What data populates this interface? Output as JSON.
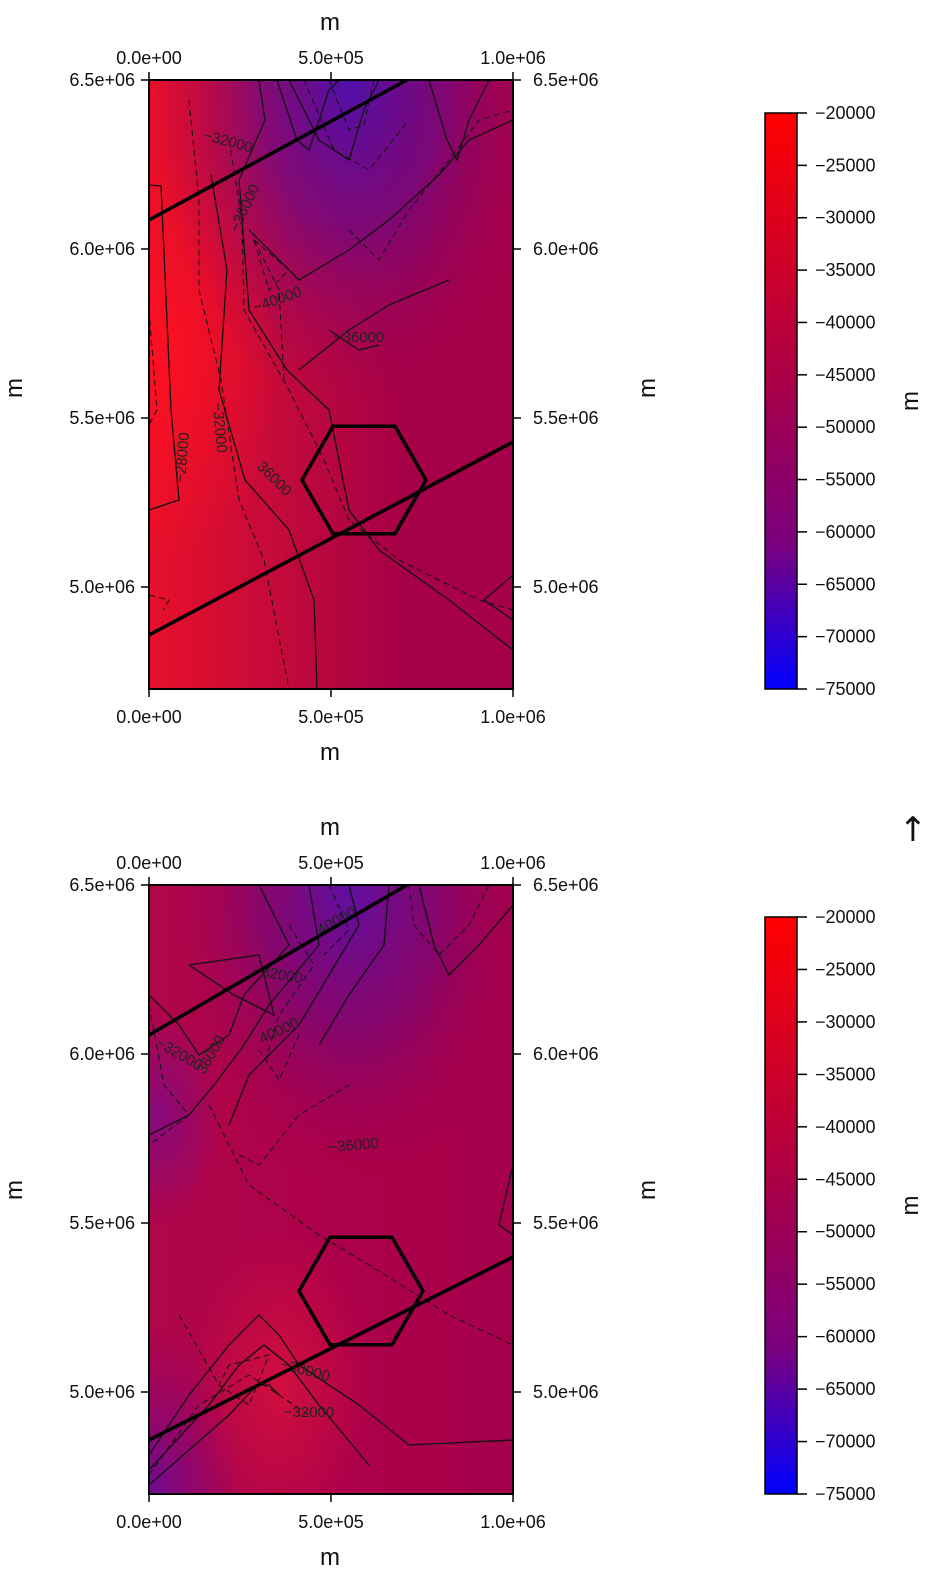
{
  "colors": {
    "scale_high": "#ff0000",
    "scale_mid": "#a4004c",
    "scale_low": "#0000ff",
    "contour_line": "#111111",
    "overlay_line": "#000000"
  },
  "side_glyph": {
    "icon": "arrow-hat-icon",
    "text": "↑"
  },
  "chart_data": [
    {
      "type": "heatmap",
      "title": "",
      "top_axis": {
        "title": "m",
        "ticks": [
          "0.0e+00",
          "5.0e+05",
          "1.0e+06"
        ]
      },
      "bottom_axis": {
        "title": "m",
        "ticks": [
          "0.0e+00",
          "5.0e+05",
          "1.0e+06"
        ]
      },
      "left_axis": {
        "title": "m",
        "ticks": [
          "6.5e+06",
          "6.0e+06",
          "5.5e+06",
          "5.0e+06"
        ]
      },
      "right_axis": {
        "title": "m",
        "ticks": [
          "6.5e+06",
          "6.0e+06",
          "5.5e+06",
          "5.0e+06"
        ]
      },
      "xlim": [
        0,
        1000000
      ],
      "ylim": [
        4700000,
        6500000
      ],
      "colorbar": {
        "title": "m",
        "ticks": [
          "−20000",
          "−25000",
          "−30000",
          "−35000",
          "−40000",
          "−45000",
          "−50000",
          "−55000",
          "−60000",
          "−65000",
          "−70000",
          "−75000"
        ],
        "range": [
          -75000,
          -20000
        ]
      },
      "contour_labels": [
        "−32000",
        "−36000",
        "−40000",
        "−36000",
        "−32000",
        "−28000",
        "36000"
      ],
      "contour_levels": [
        -28000,
        -32000,
        -36000,
        -40000
      ],
      "field_description_values": {
        "west_edge": -24000,
        "center": -37000,
        "north_trough": -52000,
        "east_edge": -38000
      }
    },
    {
      "type": "heatmap",
      "title": "",
      "top_axis": {
        "title": "m",
        "ticks": [
          "0.0e+00",
          "5.0e+05",
          "1.0e+06"
        ]
      },
      "bottom_axis": {
        "title": "m",
        "ticks": [
          "0.0e+00",
          "5.0e+05",
          "1.0e+06"
        ]
      },
      "left_axis": {
        "title": "m",
        "ticks": [
          "6.5e+06",
          "6.0e+06",
          "5.5e+06",
          "5.0e+06"
        ]
      },
      "right_axis": {
        "title": "m",
        "ticks": [
          "6.5e+06",
          "6.0e+06",
          "5.5e+06",
          "5.0e+06"
        ]
      },
      "xlim": [
        0,
        1000000
      ],
      "ylim": [
        4700000,
        6500000
      ],
      "colorbar": {
        "title": "m",
        "ticks": [
          "−20000",
          "−25000",
          "−30000",
          "−35000",
          "−40000",
          "−45000",
          "−50000",
          "−55000",
          "−60000",
          "−65000",
          "−70000",
          "−75000"
        ],
        "range": [
          -75000,
          -20000
        ]
      },
      "contour_labels": [
        "40000",
        "−32000",
        "−32000",
        "36000",
        "40000",
        "−36000",
        "−30000",
        "−32000"
      ],
      "contour_levels": [
        -30000,
        -32000,
        -36000,
        -40000
      ],
      "field_description_values": {
        "south_west": -47000,
        "center": -37000,
        "north_trough": -50000,
        "south_high": -31000
      }
    }
  ]
}
